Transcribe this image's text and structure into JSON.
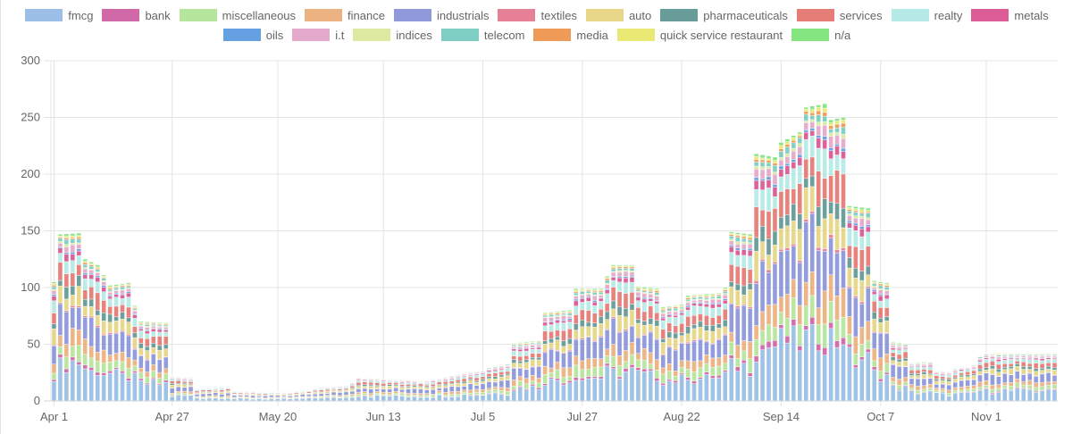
{
  "chart_data": {
    "type": "bar",
    "stacked": true,
    "title": "",
    "xlabel": "",
    "ylabel": "",
    "ylim": [
      0,
      300
    ],
    "yticks": [
      0,
      50,
      100,
      150,
      200,
      250,
      300
    ],
    "grid": true,
    "legend_position": "top-center",
    "x_tick_labels": [
      {
        "label": "Apr 1",
        "index": 0
      },
      {
        "label": "Apr 27",
        "index": 19
      },
      {
        "label": "May 20",
        "index": 36
      },
      {
        "label": "Jun 13",
        "index": 53
      },
      {
        "label": "Jul 5",
        "index": 69
      },
      {
        "label": "Jul 27",
        "index": 85
      },
      {
        "label": "Aug 22",
        "index": 101
      },
      {
        "label": "Sep 14",
        "index": 117
      },
      {
        "label": "Oct 7",
        "index": 133
      },
      {
        "label": "Nov 1",
        "index": 150
      }
    ],
    "num_bars": 162,
    "total_profile": [
      [
        0,
        105
      ],
      [
        1,
        147
      ],
      [
        4,
        148
      ],
      [
        5,
        125
      ],
      [
        7,
        120
      ],
      [
        9,
        102
      ],
      [
        12,
        104
      ],
      [
        13,
        84
      ],
      [
        14,
        70
      ],
      [
        18,
        69
      ],
      [
        19,
        22
      ],
      [
        22,
        21
      ],
      [
        23,
        11
      ],
      [
        24,
        12
      ],
      [
        28,
        13
      ],
      [
        29,
        9
      ],
      [
        38,
        8
      ],
      [
        39,
        9
      ],
      [
        41,
        10
      ],
      [
        42,
        12
      ],
      [
        47,
        14
      ],
      [
        48,
        17
      ],
      [
        49,
        21
      ],
      [
        53,
        20
      ],
      [
        56,
        19
      ],
      [
        60,
        18
      ],
      [
        66,
        25
      ],
      [
        69,
        27
      ],
      [
        70,
        30
      ],
      [
        73,
        33
      ],
      [
        74,
        51
      ],
      [
        78,
        53
      ],
      [
        79,
        78
      ],
      [
        83,
        80
      ],
      [
        84,
        99
      ],
      [
        88,
        99
      ],
      [
        89,
        110
      ],
      [
        90,
        120
      ],
      [
        93,
        120
      ],
      [
        94,
        101
      ],
      [
        97,
        99
      ],
      [
        98,
        83
      ],
      [
        101,
        85
      ],
      [
        102,
        93
      ],
      [
        107,
        95
      ],
      [
        108,
        100
      ],
      [
        109,
        149
      ],
      [
        112,
        147
      ],
      [
        113,
        218
      ],
      [
        116,
        215
      ],
      [
        117,
        228
      ],
      [
        120,
        237
      ],
      [
        121,
        259
      ],
      [
        124,
        262
      ],
      [
        125,
        248
      ],
      [
        127,
        250
      ],
      [
        128,
        172
      ],
      [
        131,
        170
      ],
      [
        132,
        106
      ],
      [
        134,
        104
      ],
      [
        135,
        52
      ],
      [
        137,
        51
      ],
      [
        138,
        34
      ],
      [
        141,
        35
      ],
      [
        142,
        27
      ],
      [
        144,
        26
      ],
      [
        145,
        29
      ],
      [
        148,
        32
      ],
      [
        149,
        40
      ],
      [
        150,
        42
      ],
      [
        161,
        42
      ]
    ],
    "series": [
      {
        "name": "fmcg",
        "color": "#8ab4e2",
        "share": 0.22
      },
      {
        "name": "bank",
        "color": "#c94f9a",
        "share": 0.02
      },
      {
        "name": "miscellaneous",
        "color": "#a9e28d",
        "share": 0.07
      },
      {
        "name": "finance",
        "color": "#eaa56b",
        "share": 0.08
      },
      {
        "name": "industrials",
        "color": "#7b87d6",
        "share": 0.17
      },
      {
        "name": "textiles",
        "color": "#e06a85",
        "share": 0.01
      },
      {
        "name": "auto",
        "color": "#e3cf72",
        "share": 0.09
      },
      {
        "name": "pharmaceuticals",
        "color": "#4d8b86",
        "share": 0.05
      },
      {
        "name": "services",
        "color": "#e2665f",
        "share": 0.09
      },
      {
        "name": "realty",
        "color": "#a9e6e2",
        "share": 0.07
      },
      {
        "name": "metals",
        "color": "#d63f83",
        "share": 0.03
      },
      {
        "name": "oils",
        "color": "#4a8fdd",
        "share": 0.01
      },
      {
        "name": "i.t",
        "color": "#e09bc2",
        "share": 0.03
      },
      {
        "name": "indices",
        "color": "#d6e58e",
        "share": 0.01
      },
      {
        "name": "telecom",
        "color": "#69c6b8",
        "share": 0.02
      },
      {
        "name": "media",
        "color": "#ec8a3a",
        "share": 0.01
      },
      {
        "name": "quick service restaurant",
        "color": "#e5e55c",
        "share": 0.01
      },
      {
        "name": "n/a",
        "color": "#6fe06a",
        "share": 0.01
      }
    ]
  }
}
